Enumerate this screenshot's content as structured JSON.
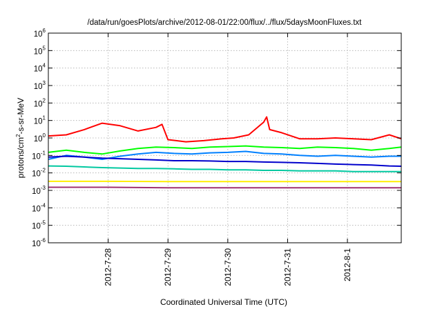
{
  "chart_data": {
    "type": "line",
    "title": "/data/run/goesPlots/archive/2012-08-01/22:00/flux/../flux/5daysMoonFluxes.txt",
    "xlabel": "Coordinated Universal Time (UTC)",
    "ylabel": {
      "main": "protons/cm",
      "sup": "2",
      "rest": "-s-sr-MeV"
    },
    "y_scale": "log",
    "ylim": [
      1e-06,
      1000000.0
    ],
    "xlim": [
      0,
      5.9
    ],
    "grid": true,
    "legend": "none",
    "y_ticks": [
      {
        "value": 1e-06,
        "base": "10",
        "exp": "-6"
      },
      {
        "value": 1e-05,
        "base": "10",
        "exp": "-5"
      },
      {
        "value": 0.0001,
        "base": "10",
        "exp": "-4"
      },
      {
        "value": 0.001,
        "base": "10",
        "exp": "-3"
      },
      {
        "value": 0.01,
        "base": "10",
        "exp": "-2"
      },
      {
        "value": 0.1,
        "base": "10",
        "exp": "-1"
      },
      {
        "value": 1.0,
        "base": "10",
        "exp": "0"
      },
      {
        "value": 10.0,
        "base": "10",
        "exp": "1"
      },
      {
        "value": 100.0,
        "base": "10",
        "exp": "2"
      },
      {
        "value": 1000.0,
        "base": "10",
        "exp": "3"
      },
      {
        "value": 10000.0,
        "base": "10",
        "exp": "4"
      },
      {
        "value": 100000.0,
        "base": "10",
        "exp": "5"
      },
      {
        "value": 1000000.0,
        "base": "10",
        "exp": "6"
      }
    ],
    "x_ticks": [
      {
        "value": 1,
        "label": "2012-7-28"
      },
      {
        "value": 2,
        "label": "2012-7-29"
      },
      {
        "value": 3,
        "label": "2012-7-30"
      },
      {
        "value": 4,
        "label": "2012-7-31"
      },
      {
        "value": 5,
        "label": "2012-8-1"
      }
    ],
    "x_units": "days since 2012-07-27 00:00 UTC",
    "series": [
      {
        "color": "#ff0000",
        "x": [
          0,
          0.3,
          0.6,
          0.9,
          1.2,
          1.5,
          1.8,
          1.9,
          2.0,
          2.3,
          2.6,
          2.9,
          3.1,
          3.35,
          3.6,
          3.65,
          3.7,
          3.9,
          4.2,
          4.5,
          4.8,
          5.1,
          5.4,
          5.7,
          5.9
        ],
        "y": [
          1.3,
          1.5,
          3.0,
          7.0,
          5.0,
          2.5,
          4.0,
          6.0,
          0.8,
          0.6,
          0.7,
          0.9,
          1.0,
          1.5,
          8.0,
          16,
          3.0,
          2.0,
          0.9,
          0.9,
          1.0,
          0.9,
          0.8,
          1.5,
          0.9
        ]
      },
      {
        "color": "#00ff00",
        "x": [
          0,
          0.3,
          0.6,
          0.9,
          1.2,
          1.5,
          1.8,
          2.1,
          2.4,
          2.7,
          3.0,
          3.3,
          3.6,
          3.9,
          4.2,
          4.5,
          4.8,
          5.1,
          5.4,
          5.7,
          5.9
        ],
        "y": [
          0.15,
          0.2,
          0.15,
          0.12,
          0.18,
          0.25,
          0.3,
          0.28,
          0.25,
          0.3,
          0.32,
          0.35,
          0.3,
          0.28,
          0.25,
          0.3,
          0.28,
          0.25,
          0.2,
          0.25,
          0.3
        ]
      },
      {
        "color": "#0080ff",
        "x": [
          0,
          0.3,
          0.6,
          0.9,
          1.2,
          1.5,
          1.8,
          2.1,
          2.4,
          2.7,
          3.0,
          3.3,
          3.6,
          3.9,
          4.2,
          4.5,
          4.8,
          5.1,
          5.4,
          5.7,
          5.9
        ],
        "y": [
          0.06,
          0.1,
          0.08,
          0.06,
          0.09,
          0.12,
          0.15,
          0.13,
          0.12,
          0.14,
          0.15,
          0.17,
          0.13,
          0.12,
          0.1,
          0.09,
          0.1,
          0.09,
          0.08,
          0.09,
          0.09
        ]
      },
      {
        "color": "#0000cc",
        "x": [
          0,
          0.3,
          0.6,
          0.9,
          1.2,
          1.5,
          1.8,
          2.1,
          2.4,
          2.7,
          3.0,
          3.3,
          3.6,
          3.9,
          4.2,
          4.5,
          4.8,
          5.1,
          5.4,
          5.7,
          5.9
        ],
        "y": [
          0.08,
          0.09,
          0.08,
          0.07,
          0.065,
          0.06,
          0.055,
          0.05,
          0.05,
          0.048,
          0.045,
          0.045,
          0.042,
          0.04,
          0.038,
          0.035,
          0.032,
          0.03,
          0.028,
          0.025,
          0.024
        ]
      },
      {
        "color": "#00c8a0",
        "x": [
          0,
          0.3,
          0.6,
          0.9,
          1.2,
          1.5,
          1.8,
          2.1,
          2.4,
          2.7,
          3.0,
          3.3,
          3.6,
          3.9,
          4.2,
          4.5,
          4.8,
          5.1,
          5.4,
          5.7,
          5.9
        ],
        "y": [
          0.025,
          0.024,
          0.022,
          0.02,
          0.019,
          0.018,
          0.018,
          0.017,
          0.016,
          0.016,
          0.015,
          0.015,
          0.014,
          0.014,
          0.013,
          0.013,
          0.013,
          0.012,
          0.012,
          0.012,
          0.012
        ]
      },
      {
        "color": "#ffee00",
        "x": [
          0,
          1,
          2,
          3,
          4,
          5,
          5.9
        ],
        "y": [
          0.0033,
          0.0033,
          0.0032,
          0.0032,
          0.0032,
          0.0032,
          0.0032
        ]
      },
      {
        "color": "#a03070",
        "x": [
          0,
          1,
          2,
          3,
          4,
          5,
          5.9
        ],
        "y": [
          0.0015,
          0.0015,
          0.0014,
          0.0014,
          0.0014,
          0.0014,
          0.0014
        ]
      }
    ]
  }
}
